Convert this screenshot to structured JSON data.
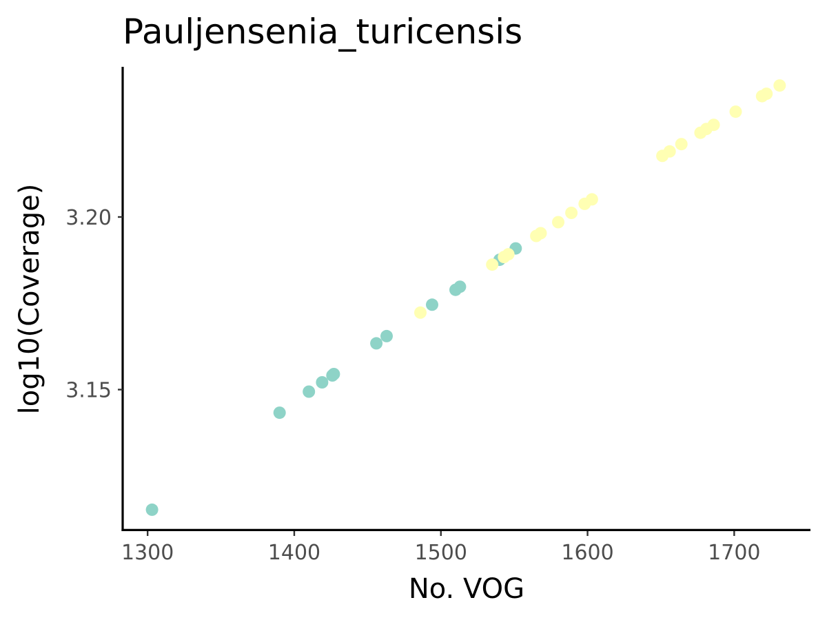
{
  "chart_data": {
    "type": "scatter",
    "title": "Pauljensenia_turicensis",
    "xlabel": "No. VOG",
    "ylabel": "log10(Coverage)",
    "xlim": [
      1283,
      1752
    ],
    "ylim": [
      3.109,
      3.2435
    ],
    "x_ticks": [
      1300,
      1400,
      1500,
      1600,
      1700
    ],
    "x_tick_labels": [
      "1300",
      "1400",
      "1500",
      "1600",
      "1700"
    ],
    "y_ticks": [
      3.15,
      3.2
    ],
    "y_tick_labels": [
      "3.15",
      "3.20"
    ],
    "grid": false,
    "legend": "none",
    "colors": {
      "group_a": "#8ed3c7",
      "group_b": "#ffffb3"
    },
    "series": [
      {
        "color": "#8ed3c7",
        "points": [
          [
            1303,
            3.1152
          ],
          [
            1390,
            3.1433
          ],
          [
            1410,
            3.1494
          ],
          [
            1419,
            3.1521
          ],
          [
            1426,
            3.1541
          ],
          [
            1427,
            3.1545
          ],
          [
            1456,
            3.1634
          ],
          [
            1463,
            3.1655
          ],
          [
            1494,
            3.1746
          ],
          [
            1510,
            3.1789
          ],
          [
            1513,
            3.1798
          ],
          [
            1540,
            3.1876
          ],
          [
            1551,
            3.1909
          ]
        ]
      },
      {
        "color": "#ffffb3",
        "points": [
          [
            1486,
            3.1723
          ],
          [
            1535,
            3.1862
          ],
          [
            1543,
            3.1884
          ],
          [
            1546,
            3.1892
          ],
          [
            1565,
            3.1945
          ],
          [
            1568,
            3.1953
          ],
          [
            1580,
            3.1985
          ],
          [
            1589,
            3.2012
          ],
          [
            1598,
            3.2038
          ],
          [
            1603,
            3.2051
          ],
          [
            1651,
            3.2177
          ],
          [
            1656,
            3.219
          ],
          [
            1664,
            3.2211
          ],
          [
            1677,
            3.2244
          ],
          [
            1681,
            3.2255
          ],
          [
            1686,
            3.2267
          ],
          [
            1701,
            3.2305
          ],
          [
            1719,
            3.235
          ],
          [
            1722,
            3.2357
          ],
          [
            1731,
            3.2381
          ]
        ]
      }
    ]
  }
}
